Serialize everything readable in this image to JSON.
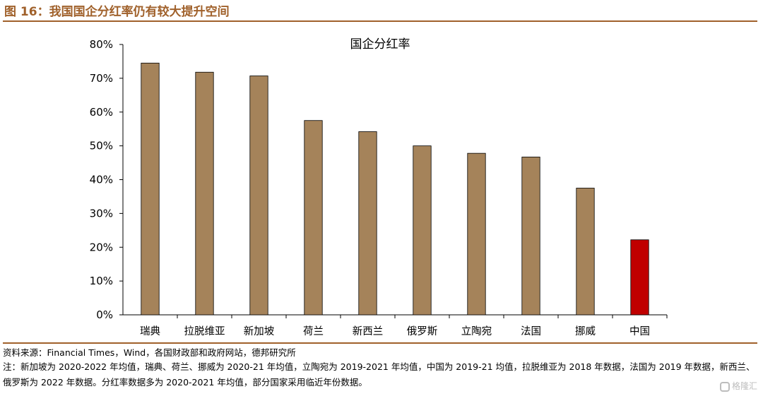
{
  "figure": {
    "title": "图 16：我国国企分红率仍有较大提升空间",
    "source": "资料来源：Financial Times，Wind，各国财政部和政府网站，德邦研究所",
    "note": "注：新加坡为 2020-2022 年均值，瑞典、荷兰、挪威为 2020-21 年均值，立陶宛为 2019-2021 年均值，中国为 2019-21 均值，拉脱维亚为 2018 年数据，法国为 2019 年数据，新西兰、俄罗斯为 2022 年数据。分红率数据多为 2020-2021 年均值，部分国家采用临近年份数据。",
    "watermark": "格隆汇"
  },
  "chart_data": {
    "type": "bar",
    "title": "国企分红率",
    "xlabel": "",
    "ylabel": "",
    "categories": [
      "瑞典",
      "拉脱维亚",
      "新加坡",
      "荷兰",
      "新西兰",
      "俄罗斯",
      "立陶宛",
      "法国",
      "挪威",
      "中国"
    ],
    "values": [
      74.5,
      71.8,
      70.7,
      57.5,
      54.2,
      50.0,
      47.8,
      46.7,
      37.5,
      22.2
    ],
    "ylim": [
      0,
      80
    ],
    "yticks": [
      "0%",
      "10%",
      "20%",
      "30%",
      "40%",
      "50%",
      "60%",
      "70%",
      "80%"
    ],
    "grid": false,
    "legend": "none",
    "colors": {
      "default": "#a5835a",
      "highlight": "#c00000",
      "highlight_category": "中国",
      "accent": "#a0612b"
    }
  }
}
